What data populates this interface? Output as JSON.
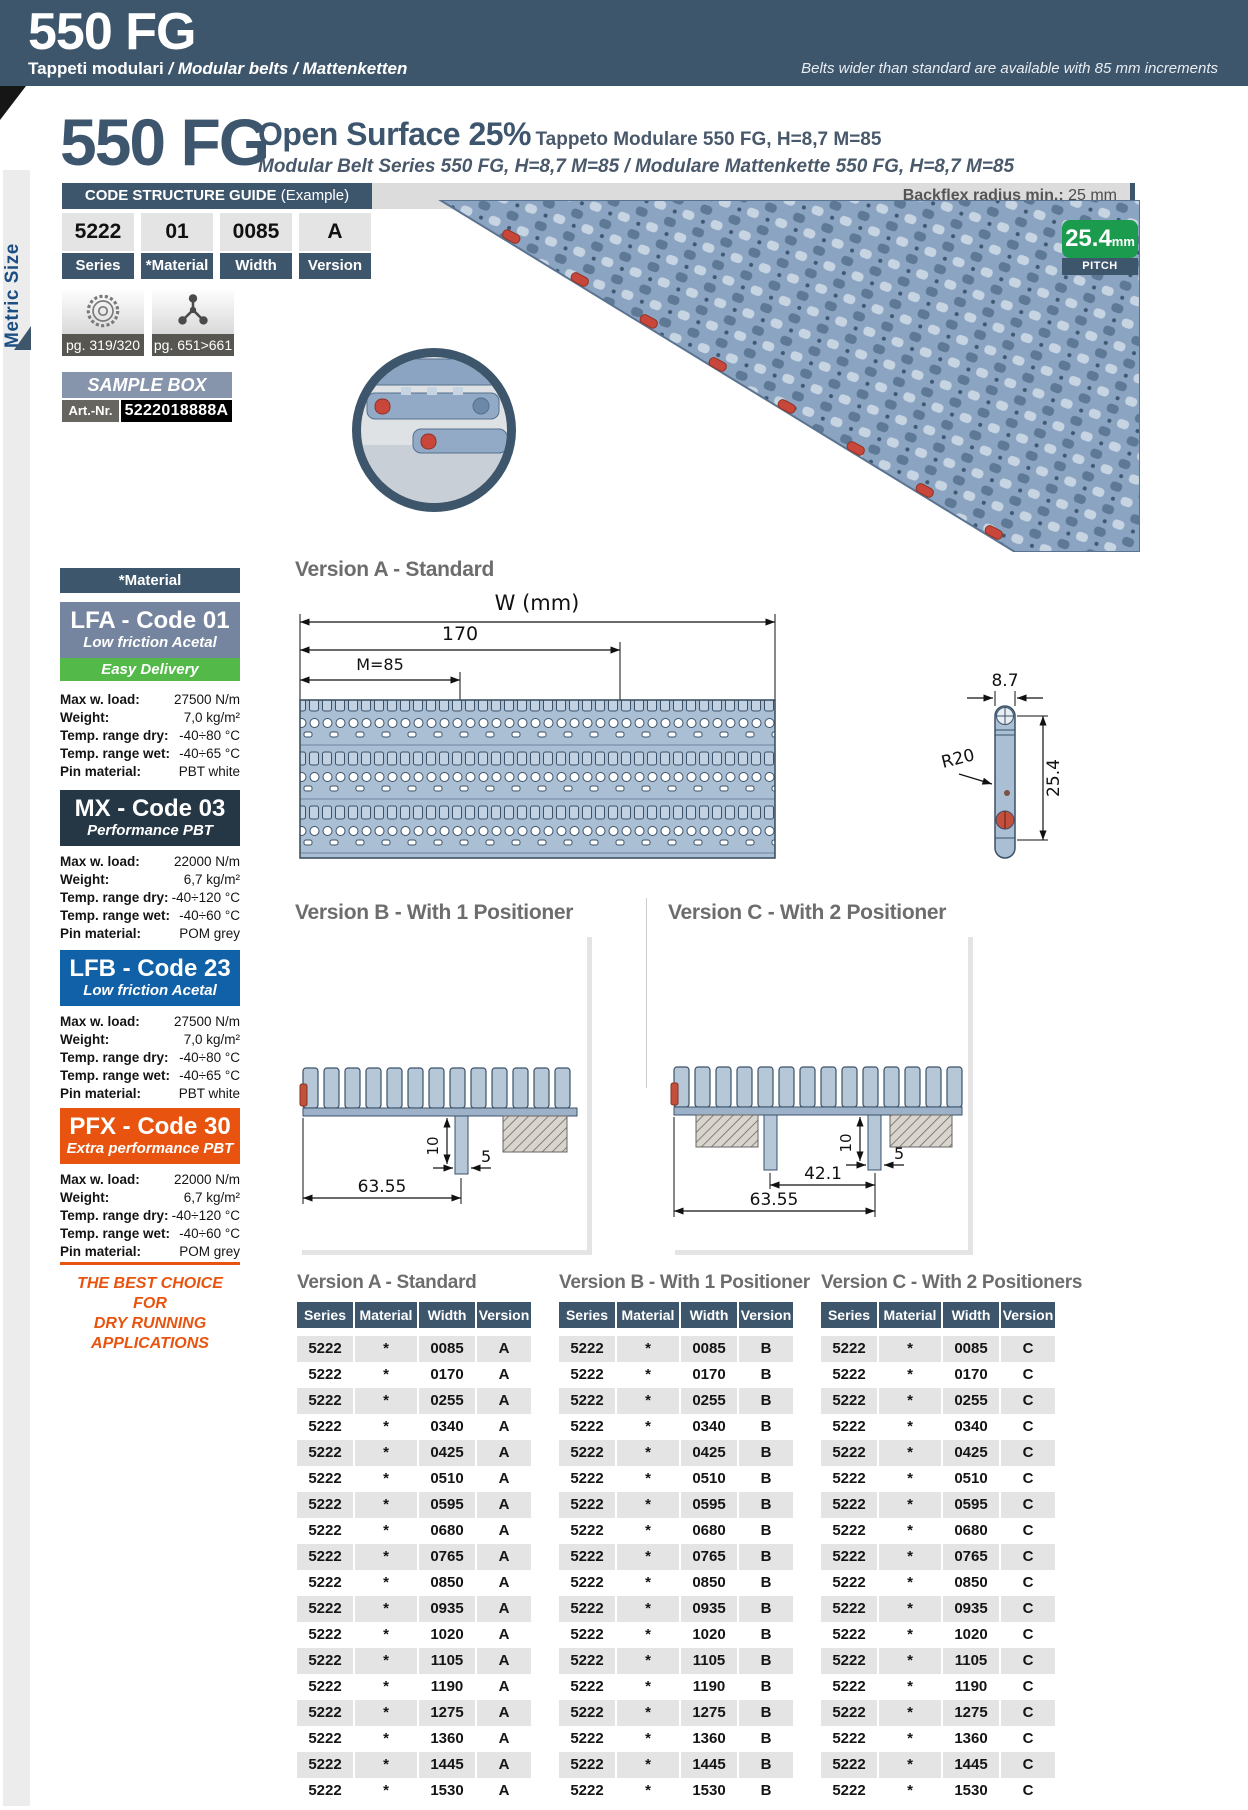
{
  "header": {
    "product": "550 FG",
    "subtitle_bold": "Tappeti modulari",
    "subtitle_italic": " / Modular belts / Mattenketten",
    "note": "Belts wider than standard are available with 85 mm increments"
  },
  "sidebar": {
    "label": "Metric Size"
  },
  "title": {
    "product": "550 FG",
    "main": "Open Surface 25%",
    "sub": "Tappeto Modulare 550 FG, H=8,7 M=85",
    "line2": "Modular Belt Series 550 FG, H=8,7 M=85 / Modulare Mattenkette 550 FG, H=8,7 M=85"
  },
  "code_guide": {
    "title": "CODE STRUCTURE GUIDE",
    "example": " (Example)",
    "backflex_label": "Backflex radius min.: ",
    "backflex_value": "25 mm",
    "cells": [
      {
        "value": "5222",
        "label": "Series"
      },
      {
        "value": "01",
        "label": "*Material"
      },
      {
        "value": "0085",
        "label": "Width"
      },
      {
        "value": "A",
        "label": "Version"
      }
    ]
  },
  "pitch": {
    "value": "25.4",
    "unit": "mm",
    "label": "PITCH"
  },
  "badges": [
    {
      "icon": "sprocket-icon",
      "page": "pg. 319/320"
    },
    {
      "icon": "molecule-icon",
      "page": "pg. 651>661"
    }
  ],
  "sample_box": {
    "title": "SAMPLE BOX",
    "art_label": "Art.-Nr.",
    "art_value": "5222018888A"
  },
  "materials": {
    "header": "*Material",
    "panels": [
      {
        "name": "LFA - Code 01",
        "subtitle": "Low friction Acetal",
        "tag": "Easy Delivery",
        "specs": [
          {
            "label": "Max w. load:",
            "value": "27500 N/m"
          },
          {
            "label": "Weight:",
            "value": "7,0 kg/m²"
          },
          {
            "label": "Temp. range dry:",
            "value": "-40÷80 °C"
          },
          {
            "label": "Temp. range wet:",
            "value": "-40÷65 °C"
          },
          {
            "label": "Pin material:",
            "value": "PBT white"
          }
        ]
      },
      {
        "name": "MX - Code 03",
        "subtitle": "Performance PBT",
        "specs": [
          {
            "label": "Max w. load:",
            "value": "22000 N/m"
          },
          {
            "label": "Weight:",
            "value": "6,7 kg/m²"
          },
          {
            "label": "Temp. range dry:",
            "value": "-40÷120 °C"
          },
          {
            "label": "Temp. range wet:",
            "value": "-40÷60 °C"
          },
          {
            "label": "Pin material:",
            "value": "POM grey"
          }
        ]
      },
      {
        "name": "LFB - Code 23",
        "subtitle": "Low friction Acetal",
        "specs": [
          {
            "label": "Max w. load:",
            "value": "27500 N/m"
          },
          {
            "label": "Weight:",
            "value": "7,0 kg/m²"
          },
          {
            "label": "Temp. range dry:",
            "value": "-40÷80 °C"
          },
          {
            "label": "Temp. range wet:",
            "value": "-40÷65 °C"
          },
          {
            "label": "Pin material:",
            "value": "PBT white"
          }
        ]
      },
      {
        "name": "PFX - Code 30",
        "subtitle": "Extra performance PBT",
        "specs": [
          {
            "label": "Max w. load:",
            "value": "22000 N/m"
          },
          {
            "label": "Weight:",
            "value": "6,7 kg/m²"
          },
          {
            "label": "Temp. range dry:",
            "value": "-40÷120 °C"
          },
          {
            "label": "Temp. range wet:",
            "value": "-40÷60 °C"
          },
          {
            "label": "Pin material:",
            "value": "POM grey"
          }
        ],
        "note_line1": "THE BEST CHOICE FOR",
        "note_line2": "DRY RUNNING APPLICATIONS"
      }
    ]
  },
  "diagrams": {
    "version_a": {
      "title": "Version A -  Standard",
      "dim_w": "W (mm)",
      "dim_170": "170",
      "dim_m": "M=85",
      "dim_87": "8.7",
      "dim_r20": "R20",
      "dim_254": "25.4"
    },
    "version_b": {
      "title": "Version B - With 1 Positioner",
      "dim_total": "63.55",
      "dim_h": "10",
      "dim_tab": "5"
    },
    "version_c": {
      "title": "Version C - With 2 Positioner",
      "dim_inner": "42.1",
      "dim_total": "63.55",
      "dim_h": "10",
      "dim_tab": "5"
    }
  },
  "tables": {
    "titles": [
      "Version A - Standard",
      "Version B - With 1 Positioner",
      "Version C - With 2 Positioners"
    ],
    "columns": [
      "Series",
      "Material",
      "Width",
      "Version"
    ],
    "series": "5222",
    "material": "*",
    "versions": [
      "A",
      "B",
      "C"
    ],
    "widths": [
      "0085",
      "0170",
      "0255",
      "0340",
      "0425",
      "0510",
      "0595",
      "0680",
      "0765",
      "0850",
      "0935",
      "1020",
      "1105",
      "1190",
      "1275",
      "1360",
      "1445",
      "1530"
    ]
  },
  "colors": {
    "header_slate": "#3e566c",
    "pitch_green": "#1a9b4d",
    "easy_delivery_green": "#53b948",
    "lfa_blue_gray": "#76859f",
    "mx_dark": "#253745",
    "lfb_blue": "#1061a7",
    "pfx_orange": "#e8540f",
    "pin_red": "#c9473a"
  }
}
